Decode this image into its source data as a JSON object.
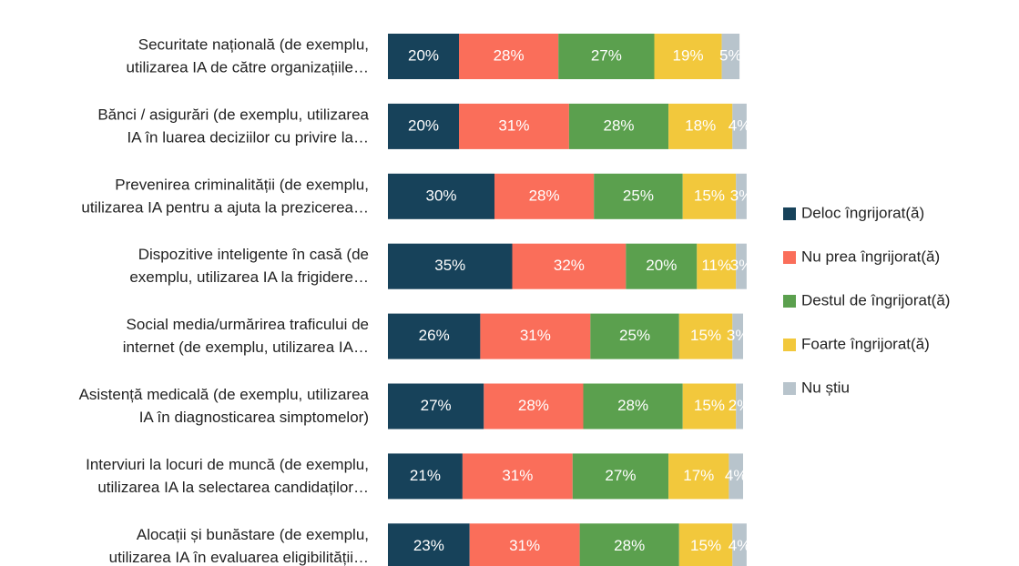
{
  "chart_data": {
    "type": "stacked-bar-horizontal",
    "categories": [
      [
        "Securitate națională (de exemplu,",
        "utilizarea IA de către organizațiile…"
      ],
      [
        "Bănci / asigurări (de exemplu, utilizarea",
        "IA în luarea deciziilor cu privire la…"
      ],
      [
        "Prevenirea criminalității (de exemplu,",
        "utilizarea IA pentru a ajuta la prezicerea…"
      ],
      [
        "Dispozitive inteligente în casă (de",
        "exemplu, utilizarea IA la frigidere…"
      ],
      [
        "Social media/urmărirea traficului de",
        "internet (de exemplu, utilizarea IA…"
      ],
      [
        "Asistență medicală (de exemplu, utilizarea",
        "IA în diagnosticarea simptomelor)"
      ],
      [
        "Interviuri la locuri de muncă (de exemplu,",
        "utilizarea IA  la selectarea candidaților…"
      ],
      [
        "Alocații și bunăstare (de exemplu,",
        "utilizarea IA în evaluarea eligibilității…"
      ]
    ],
    "series": [
      {
        "name": "Deloc îngrijorat(ă)",
        "color": "#17425a",
        "values": [
          20,
          20,
          30,
          35,
          26,
          27,
          21,
          23
        ],
        "value_labels": [
          "20%",
          "20%",
          "30%",
          "35%",
          "26%",
          "27%",
          "21%",
          "23%"
        ]
      },
      {
        "name": "Nu prea îngrijorat(ă)",
        "color": "#fa6e5a",
        "values": [
          28,
          31,
          28,
          32,
          31,
          28,
          31,
          31
        ],
        "value_labels": [
          "28%",
          "31%",
          "28%",
          "32%",
          "31%",
          "28%",
          "31%",
          "31%"
        ]
      },
      {
        "name": "Destul de îngrijorat(ă)",
        "color": "#5ba04e",
        "values": [
          27,
          28,
          25,
          20,
          25,
          28,
          27,
          28
        ],
        "value_labels": [
          "27%",
          "28%",
          "25%",
          "20%",
          "25%",
          "28%",
          "27%",
          "28%"
        ]
      },
      {
        "name": "Foarte îngrijorat(ă)",
        "color": "#f2c83c",
        "values": [
          19,
          18,
          15,
          11,
          15,
          15,
          17,
          15
        ],
        "value_labels": [
          "19%",
          "18%",
          "15%",
          "11%",
          "15%",
          "15%",
          "17%",
          "15%"
        ]
      },
      {
        "name": "Nu știu",
        "color": "#b8c4cc",
        "values": [
          5,
          4,
          3,
          3,
          3,
          2,
          4,
          4
        ],
        "value_labels": [
          "5%",
          "4%",
          "3%",
          "3%",
          "3%",
          "2%",
          "4%",
          "4%"
        ]
      }
    ],
    "legend": "right"
  }
}
